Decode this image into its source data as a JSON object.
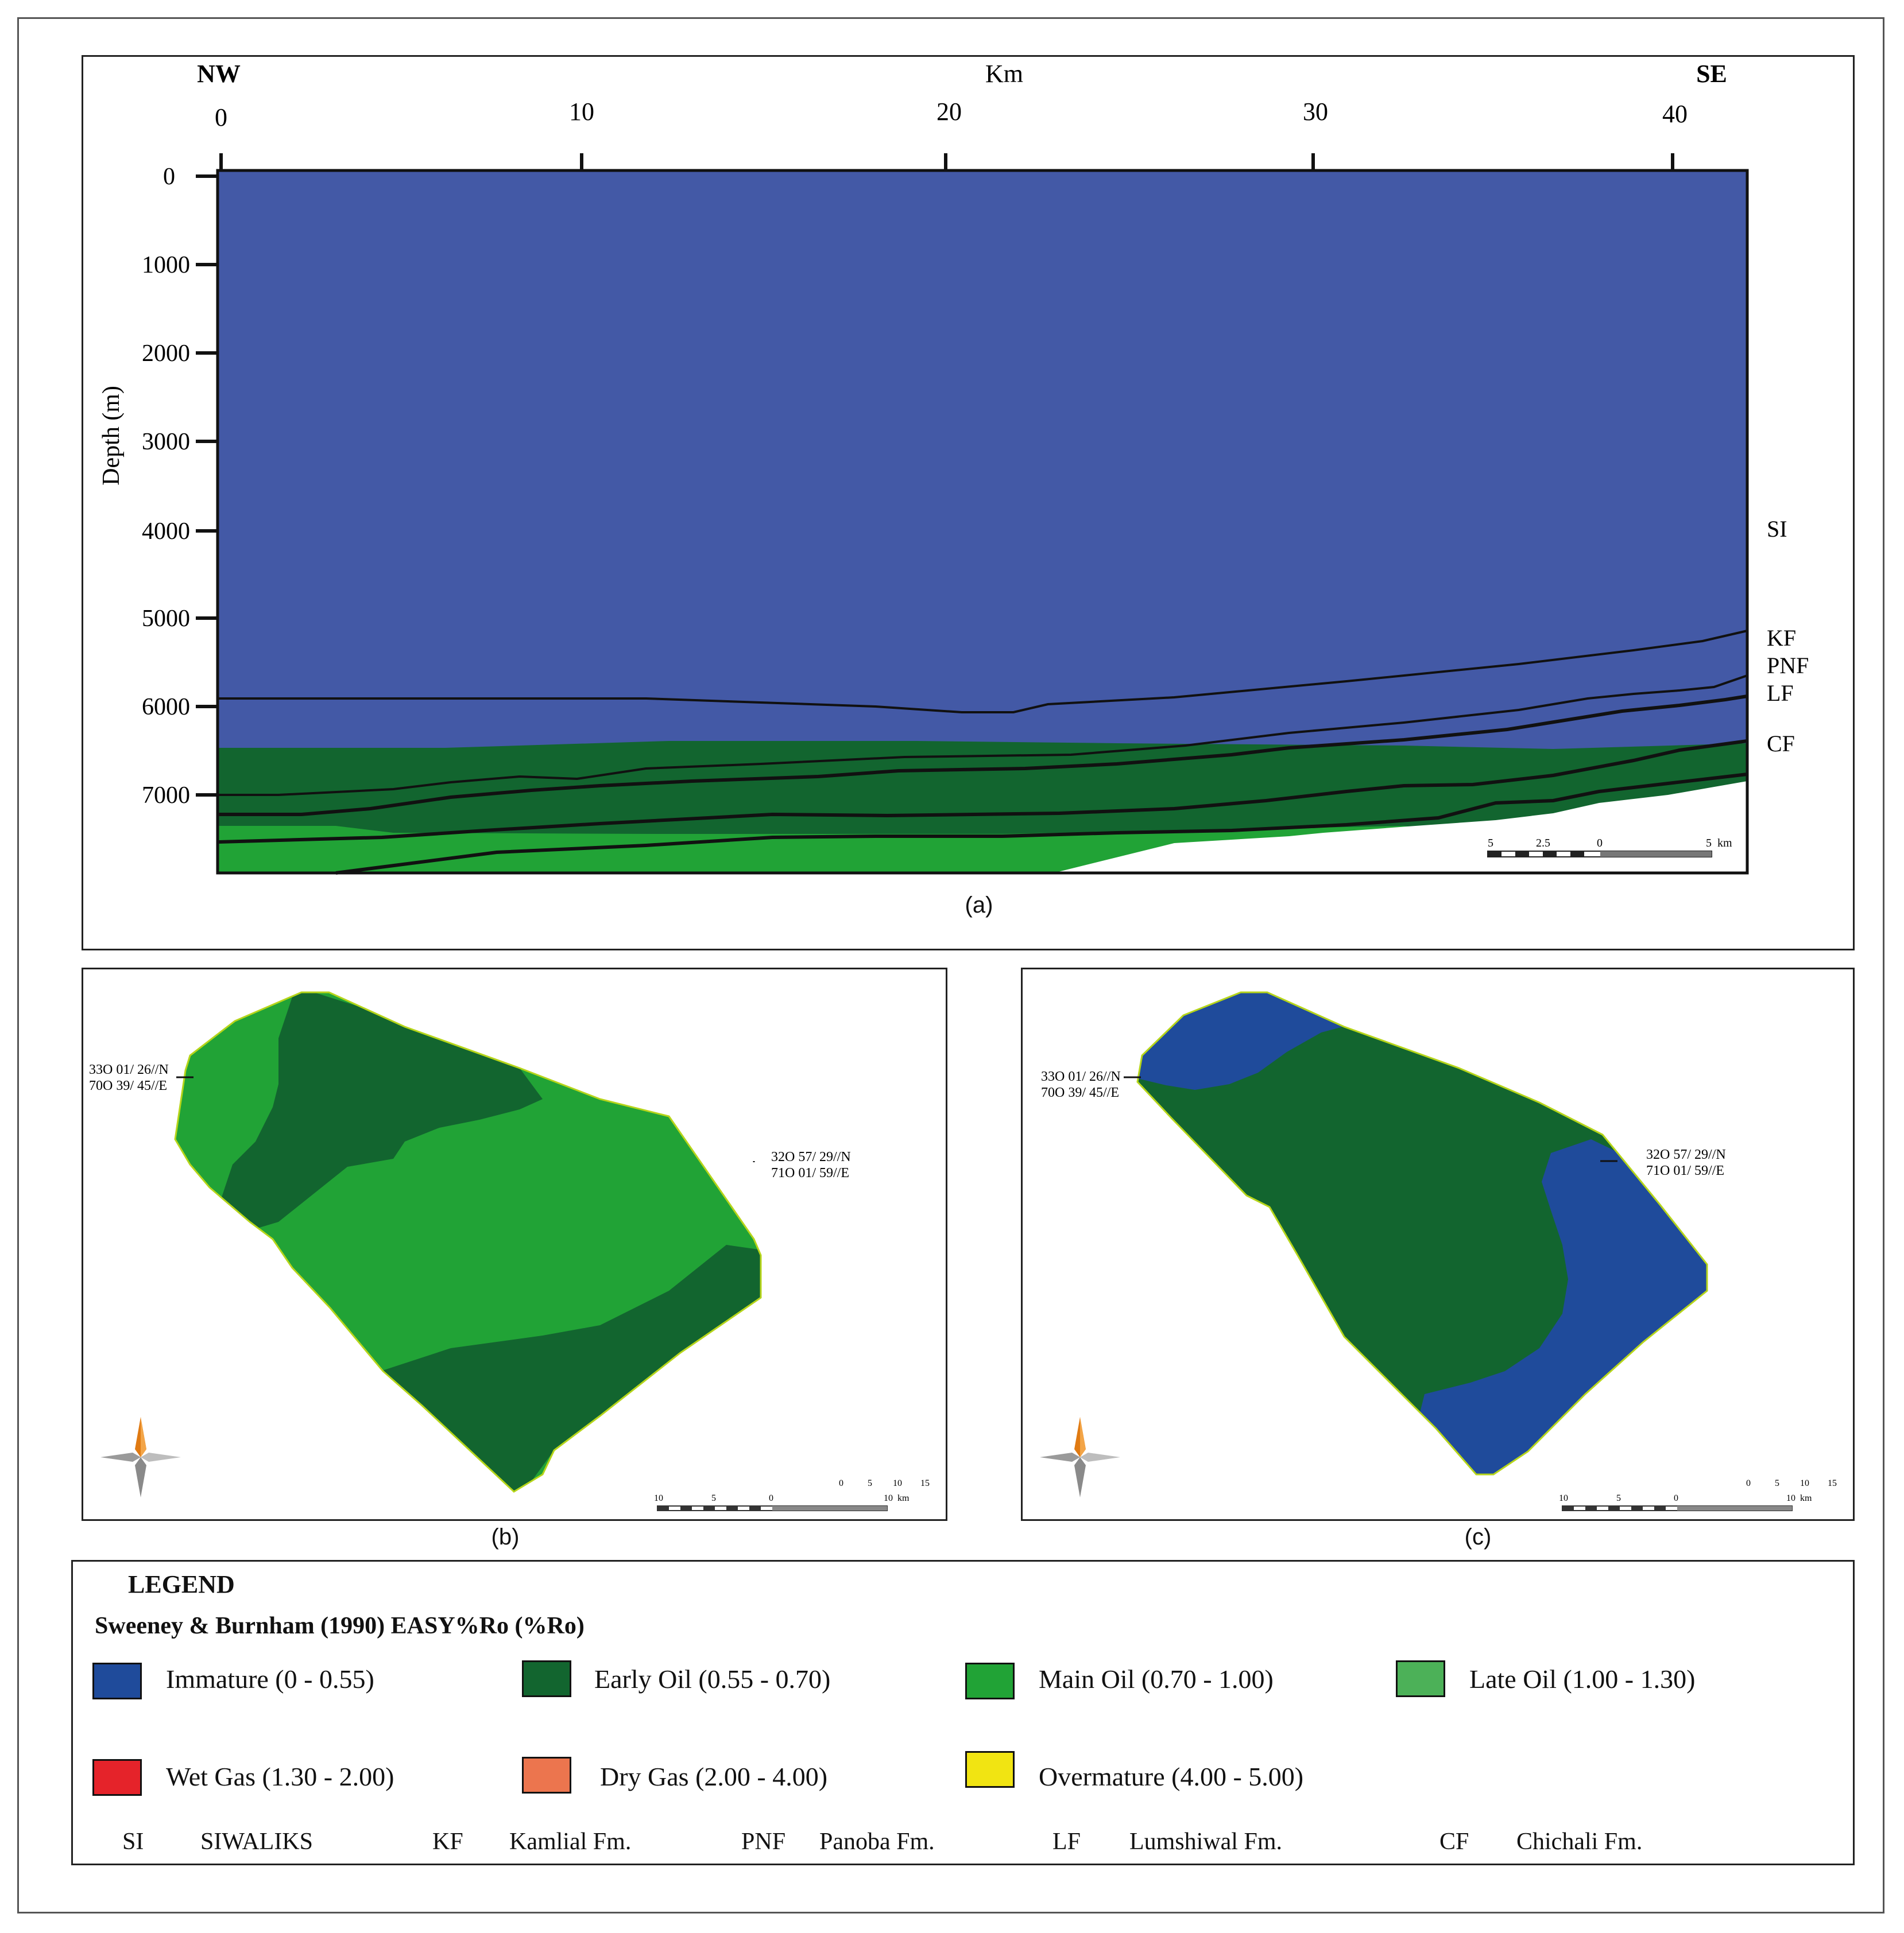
{
  "section_a": {
    "direction_left": "NW",
    "direction_right": "SE",
    "x_unit": "Km",
    "x_ticks": [
      "0",
      "10",
      "20",
      "30",
      "40"
    ],
    "y_label": "Depth (m)",
    "y_ticks": [
      "0",
      "1000",
      "2000",
      "3000",
      "4000",
      "5000",
      "6000",
      "7000"
    ],
    "formation_labels": [
      "SI",
      "KF",
      "PNF",
      "LF",
      "CF"
    ],
    "scale_labels": [
      "5",
      "2.5",
      "0",
      "5  km"
    ],
    "caption": "(a)"
  },
  "map_b": {
    "coord_nw_line1": "33O 01/ 26//N",
    "coord_nw_line2": "70O 39/ 45//E",
    "coord_se_line1": "32O 57/ 29//N",
    "coord_se_line2": "71O 01/ 59//E",
    "scale_top": [
      "0",
      "5",
      "10",
      "15"
    ],
    "scale_bottom": [
      "10",
      "5",
      "0",
      "10  km"
    ],
    "caption": "(b)"
  },
  "map_c": {
    "coord_nw_line1": "33O 01/ 26//N",
    "coord_nw_line2": "70O 39/ 45//E",
    "coord_se_line1": "32O 57/ 29//N",
    "coord_se_line2": "71O 01/ 59//E",
    "scale_top": [
      "0",
      "5",
      "10",
      "15"
    ],
    "scale_bottom": [
      "10",
      "5",
      "0",
      "10  km"
    ],
    "caption": "(c)"
  },
  "legend": {
    "title": "LEGEND",
    "subtitle": "Sweeney & Burnham (1990) EASY%Ro (%Ro)",
    "items": [
      {
        "label": "Immature (0 - 0.55)",
        "color": "#1f4b9b"
      },
      {
        "label": "Early Oil (0.55 - 0.70)",
        "color": "#12652f"
      },
      {
        "label": "Main Oil (0.70 - 1.00)",
        "color": "#21a336"
      },
      {
        "label": "Late Oil (1.00 - 1.30)",
        "color": "#4cb158"
      },
      {
        "label": "Wet Gas (1.30 - 2.00)",
        "color": "#e5232a"
      },
      {
        "label": "Dry Gas (2.00 - 4.00)",
        "color": "#ec754e"
      },
      {
        "label": "Overmature (4.00 - 5.00)",
        "color": "#f1e412"
      }
    ],
    "abbreviations": [
      {
        "abbr": "SI",
        "name": "SIWALIKS"
      },
      {
        "abbr": "KF",
        "name": "Kamlial Fm."
      },
      {
        "abbr": "PNF",
        "name": "Panoba Fm."
      },
      {
        "abbr": "LF",
        "name": "Lumshiwal Fm."
      },
      {
        "abbr": "CF",
        "name": "Chichali Fm."
      }
    ]
  },
  "colors": {
    "immature_section": "#4359a6",
    "early_oil": "#12652f",
    "main_oil": "#21a336",
    "immature_map": "#1f4b9b"
  }
}
